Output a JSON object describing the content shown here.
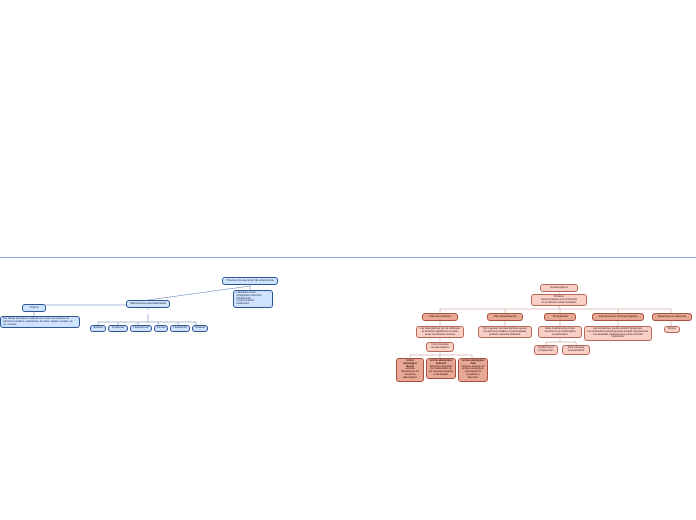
{
  "colors": {
    "blue": "#cfe2ff",
    "blue_border": "#2b5797",
    "peach": "#f8d0c6",
    "peach_border": "#b4695a",
    "darkpeach": "#e9a895",
    "rule": "#7ea6e0",
    "bg": "#ffffff"
  },
  "left": {
    "root": "Proceso de atención de enfermería",
    "steps": "• Valoración inicial\n• Diagnóstico enfermero\n• Planificación\n• Implementación\n• Evaluación",
    "topica": "Tópica",
    "topica_desc": "Son formas que liberan el fármaco en la piel o se requieren de soluciones oculares, respiratorios, de oídos, nasales, rectales, etc (ej.: cremas).",
    "situaciones": "Situaciones especializadas",
    "methods": [
      "Epidural",
      "Intrapleural",
      "Intraperitoneal",
      "Intrósea",
      "Intraarticular",
      "Intratecal"
    ]
  },
  "right": {
    "root": "Adrenérgicos",
    "root_desc": "Producen\nefectos similares a los producidos\nen el sistema nervioso simpático",
    "branches": {
      "farmacocinetica": {
        "title": "Farmacocinética",
        "desc": "Las catecolaminas por vía sublingual\nse absorben rápidamente a través\nde las membranas mucosas",
        "pivot": "Cómo funcionan\nlos adrenérgicos",
        "leaves": [
          {
            "t": "Acción adrenérgica directa",
            "d": "estimula directamente los receptores adrenérgicos"
          },
          {
            "t": "Acción adrenérgica indirecta",
            "d": "Estimula la liberación de noradrenalina de las vesículas axónicas en la sinapsis"
          },
          {
            "t": "Acción adrenérgica dual",
            "d": "Favorece la acción de ambos mecanismos, estimulación de\nreceptores y liberación"
          }
        ]
      },
      "farmacodinamia": {
        "title": "Farmacodinamia",
        "desc": "Por lo general, las catecolaminas ejercen\nsus acciones mediante α β adrenérgicas,\nproducir respuesta inhibidora."
      },
      "terapeutica": {
        "title": "Terapéutica",
        "desc": "Estos medicamentos imitan\nla acción de la noradrenalina\ny la adrenalina.",
        "sub": [
          "Ayuda frente a\nla hipotensión",
          "Poca respuesta\nrenovascular B"
        ]
      },
      "interacciones": {
        "title": "Interacciones farmacológicas",
        "desc": "Las fenotiacinas, pueden producir hipotensión.\nLa norepinefrina epinefrina puede producir hiperglucemia.\nLos alcaloides, antidepresivos pueden producir\nhipotensión."
      },
      "reacciones": {
        "title": "Reacciones adversas",
        "desc": "Buscar"
      }
    }
  }
}
